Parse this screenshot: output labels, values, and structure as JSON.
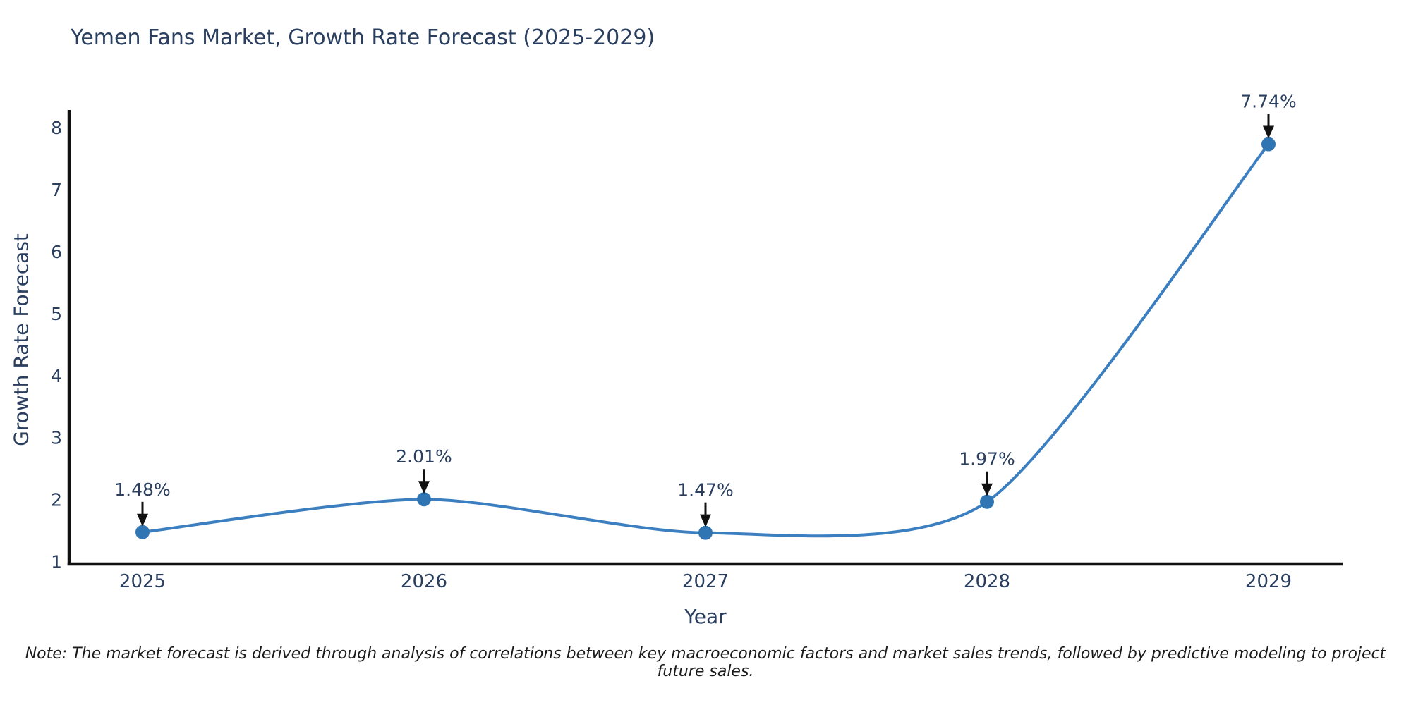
{
  "page": {
    "background_color": "#ffffff"
  },
  "chart_data": {
    "type": "line",
    "title": "Yemen Fans Market, Growth Rate Forecast (2025-2029)",
    "xlabel": "Year",
    "ylabel": "Growth Rate Forecast",
    "categories": [
      "2025",
      "2026",
      "2027",
      "2028",
      "2029"
    ],
    "x": [
      2025,
      2026,
      2027,
      2028,
      2029
    ],
    "values": [
      1.48,
      2.01,
      1.47,
      1.97,
      7.74
    ],
    "point_labels": [
      "1.48%",
      "2.01%",
      "1.47%",
      "1.97%",
      "7.74%"
    ],
    "yticks": [
      1,
      2,
      3,
      4,
      5,
      6,
      7,
      8
    ],
    "ylim": [
      0.97,
      8.3
    ],
    "line_shape": "spline",
    "grid": false,
    "legend_position": "none",
    "line_color": "#3b7fc0",
    "marker_color": "#2f74b3",
    "axis_color": "#111111",
    "text_color": "#2a3f5f",
    "annotation_arrow_color": "#111111",
    "note": "Note: The market forecast is derived through analysis of correlations between key macroeconomic factors and market sales trends, followed by predictive modeling to project future sales."
  }
}
